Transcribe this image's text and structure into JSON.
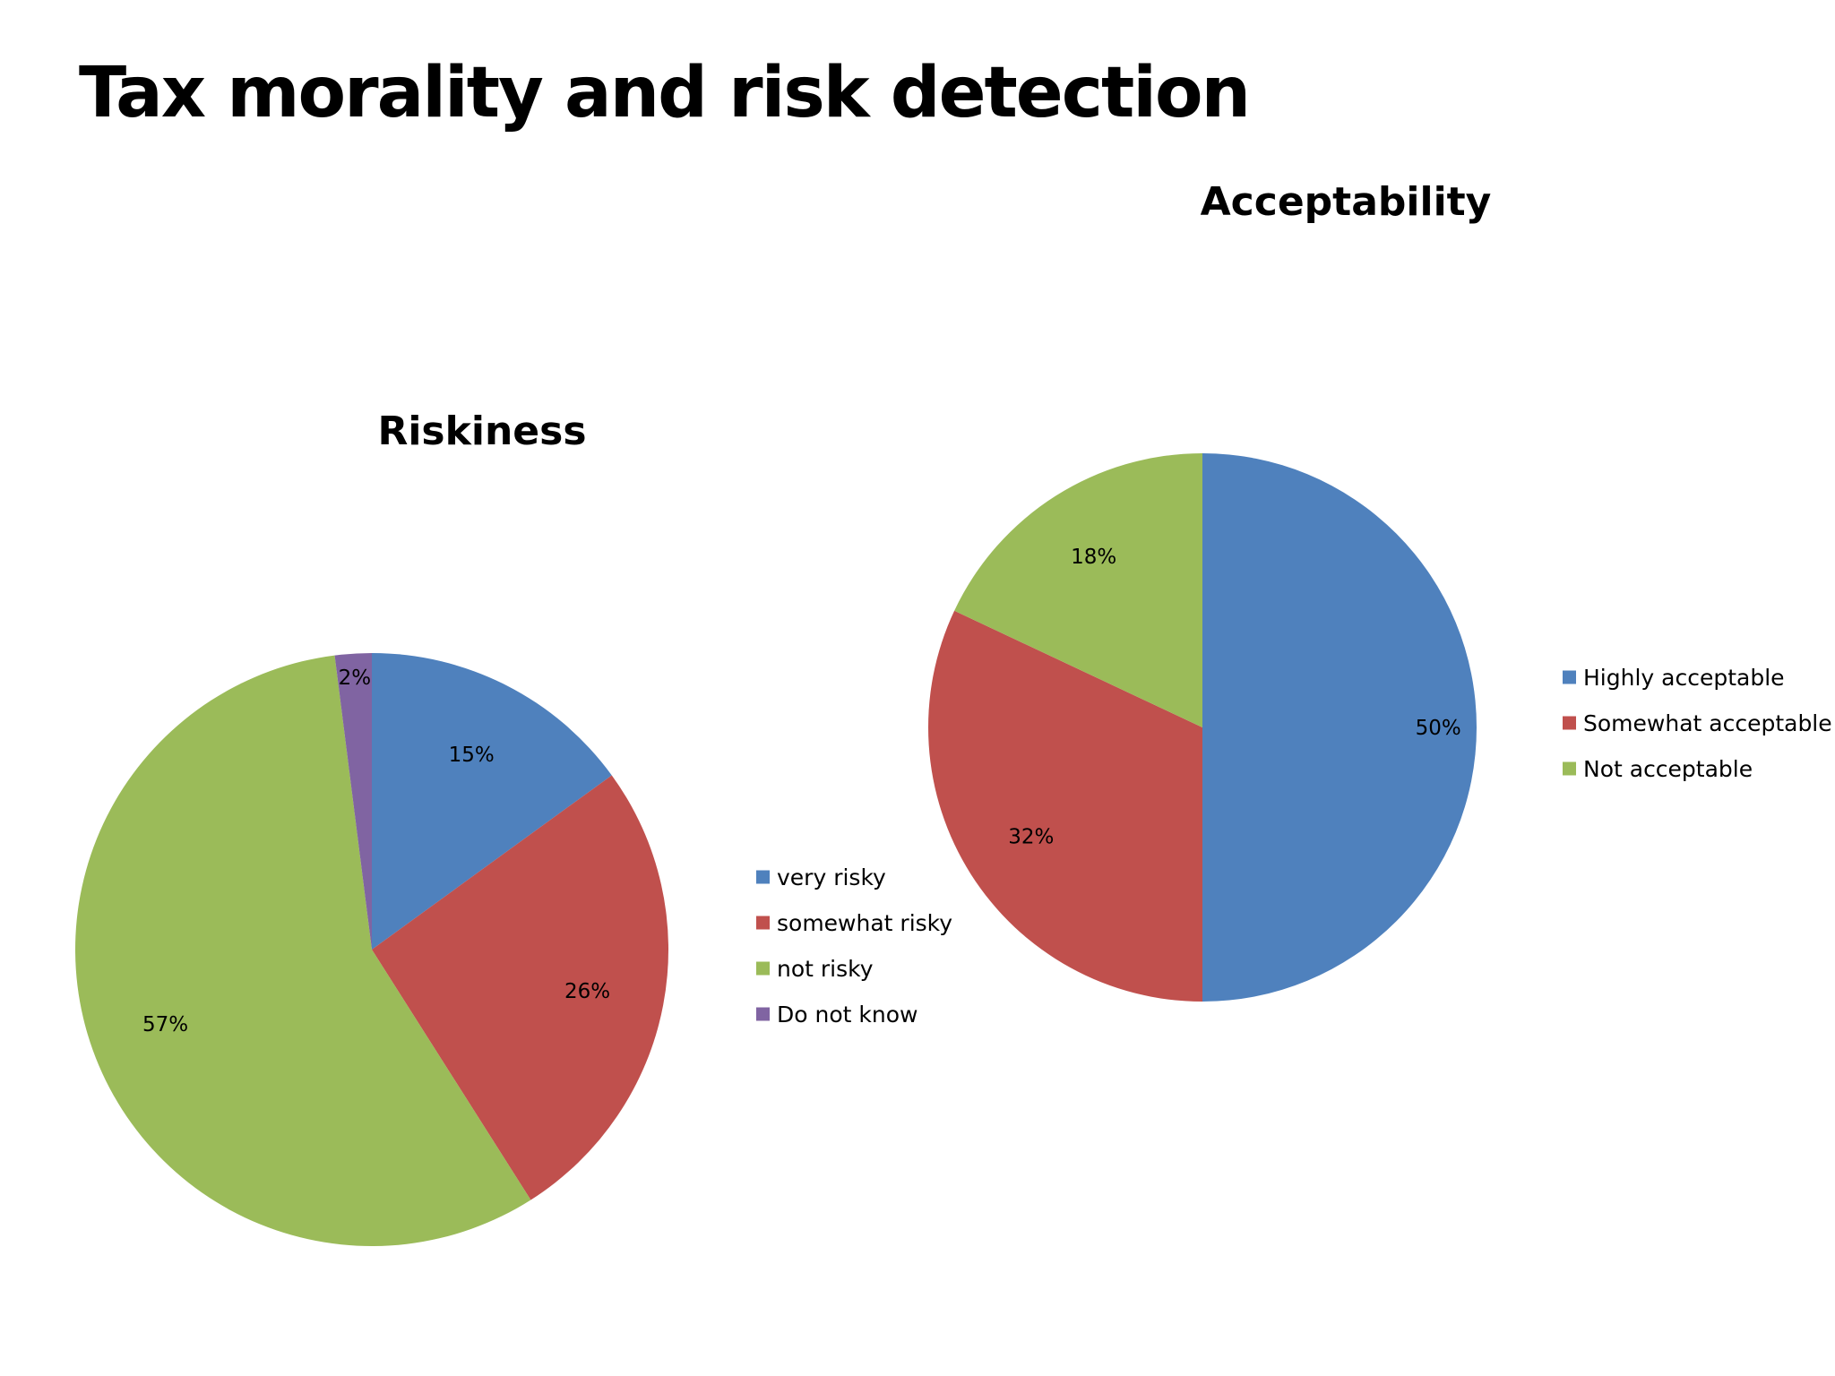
{
  "page": {
    "title": "Tax morality and risk detection"
  },
  "chart_data": [
    {
      "type": "pie",
      "title": "Riskiness",
      "categories": [
        "very risky",
        "somewhat risky",
        "not risky",
        "Do not know"
      ],
      "values": [
        15,
        26,
        57,
        2
      ],
      "data_labels": [
        "15%",
        "26%",
        "57%",
        "2%"
      ],
      "colors": [
        "#4F81BD",
        "#C0504D",
        "#9BBB59",
        "#8064A2"
      ],
      "legend": "right",
      "start_angle": "12 o'clock",
      "direction": "clockwise"
    },
    {
      "type": "pie",
      "title": "Acceptability",
      "categories": [
        "Highly acceptable",
        "Somewhat acceptable",
        "Not acceptable"
      ],
      "values": [
        50,
        32,
        18
      ],
      "data_labels": [
        "50%",
        "32%",
        "18%"
      ],
      "colors": [
        "#4F81BD",
        "#C0504D",
        "#9BBB59"
      ],
      "legend": "right",
      "start_angle": "12 o'clock",
      "direction": "clockwise"
    }
  ]
}
